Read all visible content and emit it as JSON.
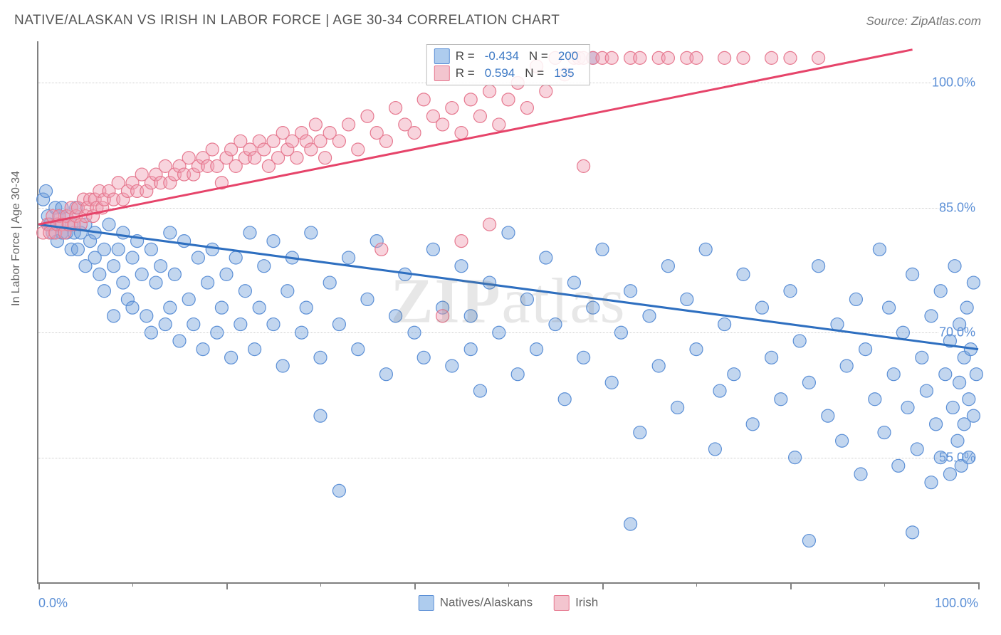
{
  "chart": {
    "type": "scatter",
    "title": "NATIVE/ALASKAN VS IRISH IN LABOR FORCE | AGE 30-34 CORRELATION CHART",
    "source": "Source: ZipAtlas.com",
    "y_axis_title": "In Labor Force | Age 30-34",
    "watermark": "ZIPatlas",
    "background_color": "#ffffff",
    "grid_color": "#cccccc",
    "axis_color": "#808080",
    "title_fontsize": 19,
    "label_fontsize": 18,
    "xlim": [
      0,
      100
    ],
    "ylim": [
      40,
      105
    ],
    "x_tick_labels": {
      "left": "0.0%",
      "right": "100.0%"
    },
    "x_major_ticks": [
      0,
      20,
      40,
      60,
      80,
      100
    ],
    "x_minor_ticks": [
      10,
      30,
      50,
      70,
      90
    ],
    "y_gridlines": [
      {
        "value": 55,
        "label": "55.0%"
      },
      {
        "value": 70,
        "label": "70.0%"
      },
      {
        "value": 85,
        "label": "85.0%"
      },
      {
        "value": 100,
        "label": "100.0%"
      }
    ],
    "legend_bottom": [
      {
        "label": "Natives/Alaskans",
        "fill": "#aeccee",
        "border": "#5b8fd6"
      },
      {
        "label": "Irish",
        "fill": "#f3c5cf",
        "border": "#e6788f"
      }
    ],
    "stats": [
      {
        "fill": "#aeccee",
        "border": "#5b8fd6",
        "r_label": "R =",
        "r_value": "-0.434",
        "n_label": "N =",
        "n_value": "200"
      },
      {
        "fill": "#f3c5cf",
        "border": "#e6788f",
        "r_label": "R =",
        "r_value": "0.594",
        "n_label": "N =",
        "n_value": "135"
      }
    ],
    "series": [
      {
        "name": "natives_alaskans",
        "marker_fill": "rgba(120,165,220,0.45)",
        "marker_stroke": "#5b8fd6",
        "marker_radius": 9,
        "trend": {
          "x1": 0,
          "y1": 83,
          "x2": 100,
          "y2": 68,
          "color": "#2e6fc0",
          "width": 3
        },
        "points": [
          [
            0.5,
            86
          ],
          [
            0.8,
            87
          ],
          [
            1,
            84
          ],
          [
            1.2,
            83
          ],
          [
            1.5,
            82
          ],
          [
            1.8,
            85
          ],
          [
            2,
            83
          ],
          [
            2,
            81
          ],
          [
            2.2,
            84
          ],
          [
            2.5,
            82
          ],
          [
            2.5,
            85
          ],
          [
            3,
            82
          ],
          [
            3,
            84
          ],
          [
            3.5,
            83
          ],
          [
            3.5,
            80
          ],
          [
            3.8,
            82
          ],
          [
            4,
            85
          ],
          [
            4.2,
            80
          ],
          [
            4.5,
            82
          ],
          [
            5,
            83
          ],
          [
            5,
            78
          ],
          [
            5.5,
            81
          ],
          [
            6,
            79
          ],
          [
            6,
            82
          ],
          [
            6.5,
            77
          ],
          [
            7,
            80
          ],
          [
            7,
            75
          ],
          [
            7.5,
            83
          ],
          [
            8,
            78
          ],
          [
            8,
            72
          ],
          [
            8.5,
            80
          ],
          [
            9,
            76
          ],
          [
            9,
            82
          ],
          [
            9.5,
            74
          ],
          [
            10,
            79
          ],
          [
            10,
            73
          ],
          [
            10.5,
            81
          ],
          [
            11,
            77
          ],
          [
            11.5,
            72
          ],
          [
            12,
            80
          ],
          [
            12,
            70
          ],
          [
            12.5,
            76
          ],
          [
            13,
            78
          ],
          [
            13.5,
            71
          ],
          [
            14,
            82
          ],
          [
            14,
            73
          ],
          [
            14.5,
            77
          ],
          [
            15,
            69
          ],
          [
            15.5,
            81
          ],
          [
            16,
            74
          ],
          [
            16.5,
            71
          ],
          [
            17,
            79
          ],
          [
            17.5,
            68
          ],
          [
            18,
            76
          ],
          [
            18.5,
            80
          ],
          [
            19,
            70
          ],
          [
            19.5,
            73
          ],
          [
            20,
            77
          ],
          [
            20.5,
            67
          ],
          [
            21,
            79
          ],
          [
            21.5,
            71
          ],
          [
            22,
            75
          ],
          [
            22.5,
            82
          ],
          [
            23,
            68
          ],
          [
            23.5,
            73
          ],
          [
            24,
            78
          ],
          [
            25,
            71
          ],
          [
            25,
            81
          ],
          [
            26,
            66
          ],
          [
            26.5,
            75
          ],
          [
            27,
            79
          ],
          [
            28,
            70
          ],
          [
            28.5,
            73
          ],
          [
            29,
            82
          ],
          [
            30,
            67
          ],
          [
            30,
            60
          ],
          [
            31,
            76
          ],
          [
            32,
            71
          ],
          [
            32,
            51
          ],
          [
            33,
            79
          ],
          [
            34,
            68
          ],
          [
            35,
            74
          ],
          [
            36,
            81
          ],
          [
            37,
            65
          ],
          [
            38,
            72
          ],
          [
            39,
            77
          ],
          [
            40,
            70
          ],
          [
            41,
            67
          ],
          [
            42,
            80
          ],
          [
            43,
            73
          ],
          [
            44,
            66
          ],
          [
            45,
            78
          ],
          [
            46,
            68
          ],
          [
            46,
            72
          ],
          [
            47,
            63
          ],
          [
            48,
            76
          ],
          [
            49,
            70
          ],
          [
            50,
            82
          ],
          [
            51,
            65
          ],
          [
            52,
            74
          ],
          [
            53,
            68
          ],
          [
            54,
            79
          ],
          [
            55,
            71
          ],
          [
            56,
            62
          ],
          [
            57,
            76
          ],
          [
            58,
            67
          ],
          [
            59,
            73
          ],
          [
            59,
            103
          ],
          [
            60,
            80
          ],
          [
            61,
            64
          ],
          [
            62,
            70
          ],
          [
            63,
            75
          ],
          [
            63,
            47
          ],
          [
            64,
            58
          ],
          [
            65,
            72
          ],
          [
            66,
            66
          ],
          [
            67,
            78
          ],
          [
            68,
            61
          ],
          [
            69,
            74
          ],
          [
            70,
            68
          ],
          [
            71,
            80
          ],
          [
            72,
            56
          ],
          [
            72.5,
            63
          ],
          [
            73,
            71
          ],
          [
            74,
            65
          ],
          [
            75,
            77
          ],
          [
            76,
            59
          ],
          [
            77,
            73
          ],
          [
            78,
            67
          ],
          [
            79,
            62
          ],
          [
            80,
            75
          ],
          [
            80.5,
            55
          ],
          [
            81,
            69
          ],
          [
            82,
            64
          ],
          [
            82,
            45
          ],
          [
            83,
            78
          ],
          [
            84,
            60
          ],
          [
            85,
            71
          ],
          [
            85.5,
            57
          ],
          [
            86,
            66
          ],
          [
            87,
            74
          ],
          [
            87.5,
            53
          ],
          [
            88,
            68
          ],
          [
            89,
            62
          ],
          [
            89.5,
            80
          ],
          [
            90,
            58
          ],
          [
            90.5,
            73
          ],
          [
            91,
            65
          ],
          [
            91.5,
            54
          ],
          [
            92,
            70
          ],
          [
            92.5,
            61
          ],
          [
            93,
            77
          ],
          [
            93,
            46
          ],
          [
            93.5,
            56
          ],
          [
            94,
            67
          ],
          [
            94.5,
            63
          ],
          [
            95,
            72
          ],
          [
            95,
            52
          ],
          [
            95.5,
            59
          ],
          [
            96,
            75
          ],
          [
            96,
            55
          ],
          [
            96.5,
            65
          ],
          [
            97,
            69
          ],
          [
            97,
            53
          ],
          [
            97.3,
            61
          ],
          [
            97.5,
            78
          ],
          [
            97.8,
            57
          ],
          [
            98,
            71
          ],
          [
            98,
            64
          ],
          [
            98.2,
            54
          ],
          [
            98.5,
            67
          ],
          [
            98.5,
            59
          ],
          [
            98.8,
            73
          ],
          [
            99,
            62
          ],
          [
            99,
            55
          ],
          [
            99.2,
            68
          ],
          [
            99.5,
            60
          ],
          [
            99.5,
            76
          ],
          [
            99.8,
            65
          ]
        ]
      },
      {
        "name": "irish",
        "marker_fill": "rgba(240,160,180,0.45)",
        "marker_stroke": "#e6788f",
        "marker_radius": 9,
        "trend": {
          "x1": 0,
          "y1": 83,
          "x2": 93,
          "y2": 104,
          "color": "#e6446a",
          "width": 3
        },
        "points": [
          [
            0.5,
            82
          ],
          [
            1,
            83
          ],
          [
            1.2,
            82
          ],
          [
            1.5,
            84
          ],
          [
            1.8,
            82
          ],
          [
            2,
            83
          ],
          [
            2.2,
            84
          ],
          [
            2.5,
            83
          ],
          [
            2.8,
            82
          ],
          [
            3,
            84
          ],
          [
            3.2,
            83
          ],
          [
            3.5,
            85
          ],
          [
            3.8,
            83
          ],
          [
            4,
            84
          ],
          [
            4.2,
            85
          ],
          [
            4.5,
            83
          ],
          [
            4.8,
            86
          ],
          [
            5,
            84
          ],
          [
            5.2,
            85
          ],
          [
            5.5,
            86
          ],
          [
            5.8,
            84
          ],
          [
            6,
            86
          ],
          [
            6.2,
            85
          ],
          [
            6.5,
            87
          ],
          [
            6.8,
            85
          ],
          [
            7,
            86
          ],
          [
            7.5,
            87
          ],
          [
            8,
            86
          ],
          [
            8.5,
            88
          ],
          [
            9,
            86
          ],
          [
            9.5,
            87
          ],
          [
            10,
            88
          ],
          [
            10.5,
            87
          ],
          [
            11,
            89
          ],
          [
            11.5,
            87
          ],
          [
            12,
            88
          ],
          [
            12.5,
            89
          ],
          [
            13,
            88
          ],
          [
            13.5,
            90
          ],
          [
            14,
            88
          ],
          [
            14.5,
            89
          ],
          [
            15,
            90
          ],
          [
            15.5,
            89
          ],
          [
            16,
            91
          ],
          [
            16.5,
            89
          ],
          [
            17,
            90
          ],
          [
            17.5,
            91
          ],
          [
            18,
            90
          ],
          [
            18.5,
            92
          ],
          [
            19,
            90
          ],
          [
            19.5,
            88
          ],
          [
            20,
            91
          ],
          [
            20.5,
            92
          ],
          [
            21,
            90
          ],
          [
            21.5,
            93
          ],
          [
            22,
            91
          ],
          [
            22.5,
            92
          ],
          [
            23,
            91
          ],
          [
            23.5,
            93
          ],
          [
            24,
            92
          ],
          [
            24.5,
            90
          ],
          [
            25,
            93
          ],
          [
            25.5,
            91
          ],
          [
            26,
            94
          ],
          [
            26.5,
            92
          ],
          [
            27,
            93
          ],
          [
            27.5,
            91
          ],
          [
            28,
            94
          ],
          [
            28.5,
            93
          ],
          [
            29,
            92
          ],
          [
            29.5,
            95
          ],
          [
            30,
            93
          ],
          [
            30.5,
            91
          ],
          [
            31,
            94
          ],
          [
            32,
            93
          ],
          [
            33,
            95
          ],
          [
            34,
            92
          ],
          [
            35,
            96
          ],
          [
            36,
            94
          ],
          [
            36.5,
            80
          ],
          [
            37,
            93
          ],
          [
            38,
            97
          ],
          [
            39,
            95
          ],
          [
            40,
            94
          ],
          [
            41,
            98
          ],
          [
            42,
            96
          ],
          [
            43,
            95
          ],
          [
            43,
            72
          ],
          [
            44,
            97
          ],
          [
            45,
            94
          ],
          [
            45,
            81
          ],
          [
            46,
            98
          ],
          [
            47,
            96
          ],
          [
            48,
            99
          ],
          [
            48,
            83
          ],
          [
            49,
            95
          ],
          [
            50,
            98
          ],
          [
            51,
            100
          ],
          [
            52,
            97
          ],
          [
            53,
            102
          ],
          [
            54,
            99
          ],
          [
            55,
            103
          ],
          [
            56,
            101
          ],
          [
            57,
            103
          ],
          [
            57.5,
            103
          ],
          [
            58,
            90
          ],
          [
            58,
            103
          ],
          [
            59,
            103
          ],
          [
            60,
            103
          ],
          [
            61,
            103
          ],
          [
            63,
            103
          ],
          [
            64,
            103
          ],
          [
            66,
            103
          ],
          [
            67,
            103
          ],
          [
            69,
            103
          ],
          [
            70,
            103
          ],
          [
            73,
            103
          ],
          [
            75,
            103
          ],
          [
            78,
            103
          ],
          [
            80,
            103
          ],
          [
            83,
            103
          ]
        ]
      }
    ]
  }
}
